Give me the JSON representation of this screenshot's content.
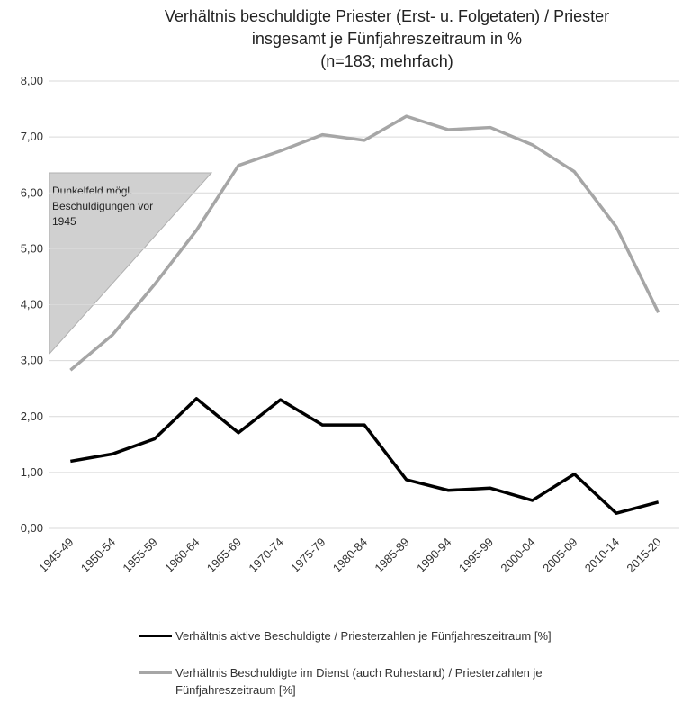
{
  "chart_data": {
    "type": "line",
    "title": [
      "Verhältnis beschuldigte Priester (Erst- u. Folgetaten) / Priester",
      "insgesamt je Fünfjahreszeitraum in %",
      "(n=183; mehrfach)"
    ],
    "categories": [
      "1945-49",
      "1950-54",
      "1955-59",
      "1960-64",
      "1965-69",
      "1970-74",
      "1975-79",
      "1980-84",
      "1985-89",
      "1990-94",
      "1995-99",
      "2000-04",
      "2005-09",
      "2010-14",
      "2015-20"
    ],
    "series": [
      {
        "name": "Verhältnis aktive Beschuldigte / Priesterzahlen je Fünfjahreszeitraum [%]",
        "color": "#000000",
        "values": [
          1.2,
          1.33,
          1.6,
          2.32,
          1.71,
          2.3,
          1.85,
          1.85,
          0.87,
          0.68,
          0.72,
          0.5,
          0.97,
          0.27,
          0.47
        ]
      },
      {
        "name": "Verhältnis Beschuldigte im Dienst (auch Ruhestand) / Priesterzahlen je Fünfjahreszeitraum [%]",
        "color": "#a6a6a6",
        "values": [
          2.83,
          3.46,
          4.36,
          5.33,
          6.49,
          6.75,
          7.04,
          6.94,
          7.37,
          7.13,
          7.17,
          6.86,
          6.38,
          5.39,
          3.86
        ]
      }
    ],
    "ylim": [
      0,
      8
    ],
    "yticks": [
      {
        "value": 0,
        "label": "0,00"
      },
      {
        "value": 1,
        "label": "1,00"
      },
      {
        "value": 2,
        "label": "2,00"
      },
      {
        "value": 3,
        "label": "3,00"
      },
      {
        "value": 4,
        "label": "4,00"
      },
      {
        "value": 5,
        "label": "5,00"
      },
      {
        "value": 6,
        "label": "6,00"
      },
      {
        "value": 7,
        "label": "7,00"
      },
      {
        "value": 8,
        "label": "8,00"
      }
    ],
    "grid": true,
    "annotation": [
      "Dunkelfeld mögl.",
      "Beschuldigungen vor",
      "1945"
    ]
  }
}
